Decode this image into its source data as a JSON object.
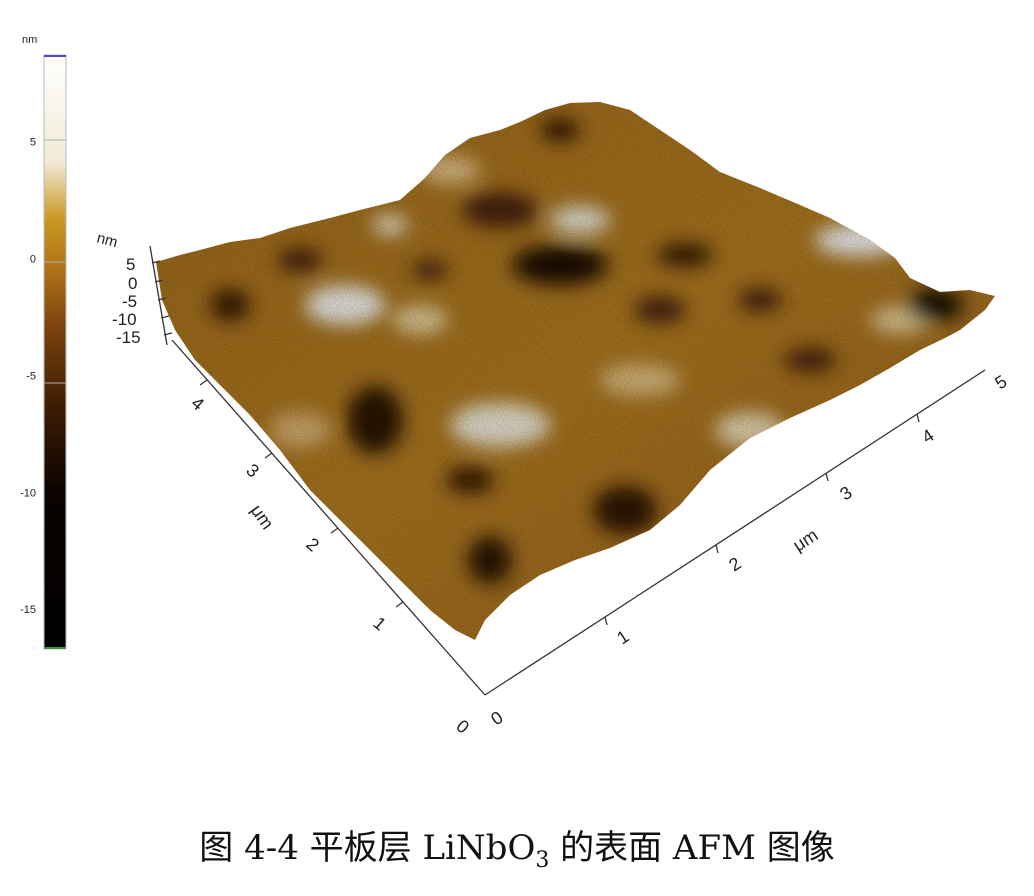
{
  "colorbar": {
    "unit": "nm",
    "ticks": [
      {
        "value": 5,
        "label": "5"
      },
      {
        "value": 0,
        "label": "0"
      },
      {
        "value": -5,
        "label": "-5"
      },
      {
        "value": -10,
        "label": "-10"
      },
      {
        "value": -15,
        "label": "-15"
      }
    ],
    "range": [
      -16.7,
      8.7
    ],
    "colors": [
      "#000000",
      "#1a0900",
      "#5a2c08",
      "#a06414",
      "#c8961e",
      "#e4d2a6",
      "#ffffff"
    ]
  },
  "surface": {
    "z_unit": "nm",
    "z_ticks": [
      "5",
      "0",
      "-5",
      "-10",
      "-15"
    ],
    "y_unit": "μm",
    "y_ticks": [
      "0",
      "1",
      "2",
      "3",
      "4"
    ],
    "x_unit": "μm",
    "x_ticks": [
      "0",
      "1",
      "2",
      "3",
      "4",
      "5"
    ]
  },
  "caption": {
    "prefix": "图 4-4  平板层 LiNbO",
    "subscript": "3",
    "suffix": " 的表面 AFM 图像"
  }
}
